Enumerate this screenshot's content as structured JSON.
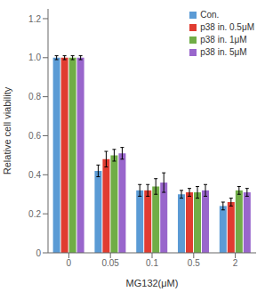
{
  "chart_data": {
    "type": "bar",
    "categories": [
      "0",
      "0.05",
      "0.1",
      "0.5",
      "2"
    ],
    "series": [
      {
        "name": "Con.",
        "color": "#5b9bd5",
        "values": [
          1.0,
          0.42,
          0.32,
          0.3,
          0.24
        ],
        "errors": [
          0.01,
          0.03,
          0.03,
          0.02,
          0.02
        ]
      },
      {
        "name": "p38 in. 0.5μM",
        "color": "#e03c31",
        "values": [
          1.0,
          0.48,
          0.32,
          0.31,
          0.26
        ],
        "errors": [
          0.01,
          0.04,
          0.03,
          0.02,
          0.02
        ]
      },
      {
        "name": "p38 in. 1μM",
        "color": "#70ad47",
        "values": [
          1.0,
          0.5,
          0.34,
          0.31,
          0.32
        ],
        "errors": [
          0.01,
          0.03,
          0.04,
          0.03,
          0.02
        ]
      },
      {
        "name": "p38 in. 5μM",
        "color": "#9966cc",
        "values": [
          1.0,
          0.51,
          0.36,
          0.32,
          0.31
        ],
        "errors": [
          0.01,
          0.03,
          0.05,
          0.03,
          0.02
        ]
      }
    ],
    "xlabel": "MG132(μM)",
    "ylabel": "Relative cell viability",
    "ylim": [
      0,
      1.25
    ],
    "yticks": [
      0,
      0.2,
      0.4,
      0.6,
      0.8,
      {
        "value": 1.0,
        "label": "1.0"
      },
      1.2
    ],
    "grid": false,
    "legend": "upper right"
  }
}
